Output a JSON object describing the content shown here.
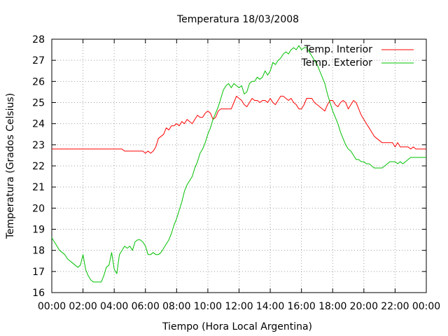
{
  "chart_data": {
    "type": "line",
    "title": "Temperatura 18/03/2008",
    "xlabel": "Tiempo (Hora Local Argentina)",
    "ylabel": "Temperatura (Grados Celsius)",
    "xlim": [
      "00:00",
      "24:00"
    ],
    "ylim": [
      16,
      28
    ],
    "grid": true,
    "legend_position": "top-right",
    "x_tick_labels": [
      "00:00",
      "02:00",
      "04:00",
      "06:00",
      "08:00",
      "10:00",
      "12:00",
      "14:00",
      "16:00",
      "18:00",
      "20:00",
      "22:00",
      "00:00"
    ],
    "y_tick_labels": [
      "16",
      "17",
      "18",
      "19",
      "20",
      "21",
      "22",
      "23",
      "24",
      "25",
      "26",
      "27",
      "28"
    ],
    "series": [
      {
        "name": "Temp. Interior",
        "color": "#ff0000",
        "points": [
          [
            "00:00",
            22.8
          ],
          [
            "04:30",
            22.8
          ],
          [
            "04:40",
            22.7
          ],
          [
            "05:50",
            22.7
          ],
          [
            "06:00",
            22.6
          ],
          [
            "06:10",
            22.7
          ],
          [
            "06:20",
            22.6
          ],
          [
            "06:30",
            22.7
          ],
          [
            "06:40",
            22.9
          ],
          [
            "06:50",
            23.3
          ],
          [
            "07:00",
            23.4
          ],
          [
            "07:10",
            23.5
          ],
          [
            "07:20",
            23.8
          ],
          [
            "07:30",
            23.7
          ],
          [
            "07:40",
            23.9
          ],
          [
            "07:50",
            23.9
          ],
          [
            "08:00",
            24.0
          ],
          [
            "08:10",
            23.9
          ],
          [
            "08:20",
            24.1
          ],
          [
            "08:30",
            24.0
          ],
          [
            "08:40",
            24.2
          ],
          [
            "08:50",
            24.1
          ],
          [
            "09:00",
            24.0
          ],
          [
            "09:10",
            24.2
          ],
          [
            "09:20",
            24.4
          ],
          [
            "09:30",
            24.3
          ],
          [
            "09:40",
            24.3
          ],
          [
            "09:50",
            24.5
          ],
          [
            "10:00",
            24.6
          ],
          [
            "10:10",
            24.5
          ],
          [
            "10:20",
            24.2
          ],
          [
            "10:30",
            24.3
          ],
          [
            "10:40",
            24.6
          ],
          [
            "10:50",
            24.7
          ],
          [
            "11:30",
            24.7
          ],
          [
            "11:40",
            25.0
          ],
          [
            "11:50",
            25.3
          ],
          [
            "12:00",
            25.2
          ],
          [
            "12:10",
            25.1
          ],
          [
            "12:20",
            24.9
          ],
          [
            "12:30",
            24.8
          ],
          [
            "12:40",
            25.0
          ],
          [
            "12:50",
            25.2
          ],
          [
            "13:00",
            25.1
          ],
          [
            "13:10",
            25.1
          ],
          [
            "13:20",
            25.0
          ],
          [
            "13:30",
            25.1
          ],
          [
            "13:40",
            25.1
          ],
          [
            "13:50",
            25.0
          ],
          [
            "14:00",
            25.2
          ],
          [
            "14:10",
            25.0
          ],
          [
            "14:20",
            24.9
          ],
          [
            "14:30",
            25.1
          ],
          [
            "14:40",
            25.3
          ],
          [
            "14:50",
            25.3
          ],
          [
            "15:00",
            25.2
          ],
          [
            "15:10",
            25.1
          ],
          [
            "15:20",
            25.2
          ],
          [
            "15:30",
            25.0
          ],
          [
            "15:40",
            24.9
          ],
          [
            "15:50",
            24.7
          ],
          [
            "16:00",
            24.7
          ],
          [
            "16:10",
            24.9
          ],
          [
            "16:20",
            25.2
          ],
          [
            "16:30",
            25.2
          ],
          [
            "16:40",
            25.2
          ],
          [
            "16:50",
            25.0
          ],
          [
            "17:00",
            24.9
          ],
          [
            "17:10",
            24.8
          ],
          [
            "17:20",
            24.7
          ],
          [
            "17:30",
            24.6
          ],
          [
            "17:40",
            24.9
          ],
          [
            "17:50",
            25.1
          ],
          [
            "18:00",
            25.1
          ],
          [
            "18:10",
            24.9
          ],
          [
            "18:20",
            24.8
          ],
          [
            "18:30",
            25.0
          ],
          [
            "18:40",
            25.1
          ],
          [
            "18:50",
            25.0
          ],
          [
            "19:00",
            24.7
          ],
          [
            "19:10",
            24.9
          ],
          [
            "19:20",
            25.1
          ],
          [
            "19:30",
            25.0
          ],
          [
            "19:40",
            24.7
          ],
          [
            "19:50",
            24.4
          ],
          [
            "20:00",
            24.2
          ],
          [
            "20:10",
            24.0
          ],
          [
            "20:20",
            23.8
          ],
          [
            "20:30",
            23.6
          ],
          [
            "20:40",
            23.4
          ],
          [
            "20:50",
            23.3
          ],
          [
            "21:00",
            23.2
          ],
          [
            "21:10",
            23.1
          ],
          [
            "21:50",
            23.1
          ],
          [
            "22:00",
            22.9
          ],
          [
            "22:10",
            23.1
          ],
          [
            "22:20",
            22.9
          ],
          [
            "22:50",
            22.9
          ],
          [
            "23:00",
            22.8
          ],
          [
            "23:10",
            22.9
          ],
          [
            "23:20",
            22.8
          ],
          [
            "24:00",
            22.8
          ]
        ]
      },
      {
        "name": "Temp. Exterior",
        "color": "#00c000",
        "points": [
          [
            "00:00",
            18.6
          ],
          [
            "00:10",
            18.4
          ],
          [
            "00:20",
            18.2
          ],
          [
            "00:30",
            18.0
          ],
          [
            "00:40",
            17.9
          ],
          [
            "00:50",
            17.8
          ],
          [
            "01:00",
            17.6
          ],
          [
            "01:10",
            17.5
          ],
          [
            "01:20",
            17.4
          ],
          [
            "01:30",
            17.3
          ],
          [
            "01:40",
            17.2
          ],
          [
            "01:50",
            17.3
          ],
          [
            "02:00",
            17.8
          ],
          [
            "02:10",
            17.1
          ],
          [
            "02:20",
            16.8
          ],
          [
            "02:30",
            16.6
          ],
          [
            "02:40",
            16.5
          ],
          [
            "03:00",
            16.5
          ],
          [
            "03:10",
            16.5
          ],
          [
            "03:20",
            16.8
          ],
          [
            "03:30",
            17.2
          ],
          [
            "03:40",
            17.3
          ],
          [
            "03:50",
            17.9
          ],
          [
            "04:00",
            17.1
          ],
          [
            "04:10",
            16.9
          ],
          [
            "04:20",
            17.8
          ],
          [
            "04:30",
            18.0
          ],
          [
            "04:40",
            18.2
          ],
          [
            "04:50",
            18.1
          ],
          [
            "05:00",
            18.2
          ],
          [
            "05:10",
            18.0
          ],
          [
            "05:20",
            18.4
          ],
          [
            "05:30",
            18.5
          ],
          [
            "05:40",
            18.5
          ],
          [
            "05:50",
            18.4
          ],
          [
            "06:00",
            18.2
          ],
          [
            "06:10",
            17.8
          ],
          [
            "06:20",
            17.8
          ],
          [
            "06:30",
            17.9
          ],
          [
            "06:40",
            17.8
          ],
          [
            "06:50",
            17.8
          ],
          [
            "07:00",
            17.9
          ],
          [
            "07:10",
            18.1
          ],
          [
            "07:20",
            18.3
          ],
          [
            "07:30",
            18.5
          ],
          [
            "07:40",
            18.8
          ],
          [
            "07:50",
            19.2
          ],
          [
            "08:00",
            19.5
          ],
          [
            "08:10",
            19.9
          ],
          [
            "08:20",
            20.3
          ],
          [
            "08:30",
            20.8
          ],
          [
            "08:40",
            21.1
          ],
          [
            "08:50",
            21.3
          ],
          [
            "09:00",
            21.5
          ],
          [
            "09:10",
            21.9
          ],
          [
            "09:20",
            22.2
          ],
          [
            "09:30",
            22.6
          ],
          [
            "09:40",
            22.8
          ],
          [
            "09:50",
            23.1
          ],
          [
            "10:00",
            23.5
          ],
          [
            "10:10",
            23.8
          ],
          [
            "10:20",
            24.2
          ],
          [
            "10:30",
            24.5
          ],
          [
            "10:40",
            24.8
          ],
          [
            "10:50",
            25.2
          ],
          [
            "11:00",
            25.6
          ],
          [
            "11:10",
            25.8
          ],
          [
            "11:20",
            25.9
          ],
          [
            "11:30",
            25.7
          ],
          [
            "11:40",
            25.9
          ],
          [
            "11:50",
            25.8
          ],
          [
            "12:00",
            25.7
          ],
          [
            "12:10",
            25.8
          ],
          [
            "12:20",
            25.4
          ],
          [
            "12:30",
            25.5
          ],
          [
            "12:40",
            25.9
          ],
          [
            "12:50",
            26.0
          ],
          [
            "13:00",
            26.0
          ],
          [
            "13:10",
            26.2
          ],
          [
            "13:20",
            26.1
          ],
          [
            "13:30",
            26.2
          ],
          [
            "13:40",
            26.5
          ],
          [
            "13:50",
            26.3
          ],
          [
            "14:00",
            26.5
          ],
          [
            "14:10",
            26.9
          ],
          [
            "14:20",
            26.8
          ],
          [
            "14:30",
            27.0
          ],
          [
            "14:40",
            27.1
          ],
          [
            "14:50",
            27.3
          ],
          [
            "15:00",
            27.4
          ],
          [
            "15:10",
            27.3
          ],
          [
            "15:20",
            27.5
          ],
          [
            "15:30",
            27.6
          ],
          [
            "15:40",
            27.5
          ],
          [
            "15:50",
            27.7
          ],
          [
            "16:00",
            27.5
          ],
          [
            "16:10",
            27.6
          ],
          [
            "16:20",
            27.6
          ],
          [
            "16:30",
            27.4
          ],
          [
            "16:40",
            27.2
          ],
          [
            "16:50",
            27.0
          ],
          [
            "17:00",
            26.8
          ],
          [
            "17:10",
            26.5
          ],
          [
            "17:20",
            26.2
          ],
          [
            "17:30",
            25.9
          ],
          [
            "17:40",
            25.4
          ],
          [
            "17:50",
            25.0
          ],
          [
            "18:00",
            24.6
          ],
          [
            "18:10",
            24.3
          ],
          [
            "18:20",
            24.0
          ],
          [
            "18:30",
            23.6
          ],
          [
            "18:40",
            23.3
          ],
          [
            "18:50",
            23.0
          ],
          [
            "19:00",
            22.8
          ],
          [
            "19:10",
            22.7
          ],
          [
            "19:20",
            22.5
          ],
          [
            "19:30",
            22.3
          ],
          [
            "19:40",
            22.3
          ],
          [
            "19:50",
            22.2
          ],
          [
            "20:00",
            22.2
          ],
          [
            "20:10",
            22.1
          ],
          [
            "20:20",
            22.1
          ],
          [
            "20:30",
            22.0
          ],
          [
            "20:40",
            21.9
          ],
          [
            "20:50",
            21.9
          ],
          [
            "21:10",
            21.9
          ],
          [
            "21:20",
            22.0
          ],
          [
            "21:30",
            22.1
          ],
          [
            "21:40",
            22.2
          ],
          [
            "22:00",
            22.2
          ],
          [
            "22:10",
            22.1
          ],
          [
            "22:20",
            22.2
          ],
          [
            "22:30",
            22.1
          ],
          [
            "22:40",
            22.2
          ],
          [
            "22:50",
            22.3
          ],
          [
            "23:00",
            22.4
          ],
          [
            "23:10",
            22.4
          ],
          [
            "24:00",
            22.4
          ]
        ]
      }
    ]
  }
}
